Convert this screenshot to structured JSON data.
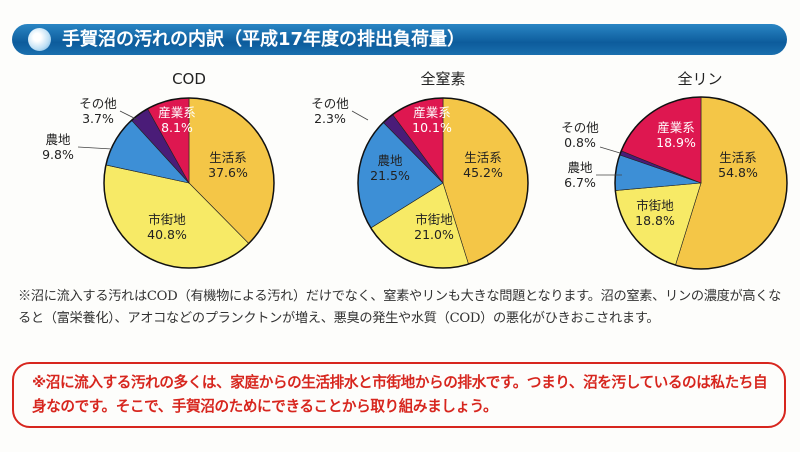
{
  "header": {
    "title": "手賀沼の汚れの内訳（平成17年度の排出負荷量）"
  },
  "colors": {
    "生活系": "#f4c647",
    "市街地": "#f7ea66",
    "農地": "#3d8fd6",
    "その他": "#4a1c78",
    "産業系": "#de1750",
    "banner": "#0d5c9c",
    "callout": "#d7261e"
  },
  "chart_data": [
    {
      "type": "pie",
      "title": "COD",
      "categories": [
        "生活系",
        "市街地",
        "農地",
        "その他",
        "産業系"
      ],
      "values": [
        37.6,
        40.8,
        9.8,
        3.7,
        8.1
      ],
      "labels": [
        "37.6%",
        "40.8%",
        "9.8%",
        "3.7%",
        "8.1%"
      ]
    },
    {
      "type": "pie",
      "title": "全窒素",
      "categories": [
        "生活系",
        "市街地",
        "農地",
        "その他",
        "産業系"
      ],
      "values": [
        45.2,
        21.0,
        21.5,
        2.3,
        10.1
      ],
      "labels": [
        "45.2%",
        "21.0%",
        "21.5%",
        "2.3%",
        "10.1%"
      ]
    },
    {
      "type": "pie",
      "title": "全リン",
      "categories": [
        "生活系",
        "市街地",
        "農地",
        "その他",
        "産業系"
      ],
      "values": [
        54.8,
        18.8,
        6.7,
        0.8,
        18.9
      ],
      "labels": [
        "54.8%",
        "18.8%",
        "6.7%",
        "0.8%",
        "18.9%"
      ]
    }
  ],
  "note": "※沼に流入する汚れはCOD（有機物による汚れ）だけでなく、窒素やリンも大きな問題となります。沼の窒素、リンの濃度が高くなると（富栄養化）、アオコなどのプランクトンが増え、悪臭の発生や水質（COD）の悪化がひきおこされます。",
  "callout": "※沼に流入する汚れの多くは、家庭からの生活排水と市街地からの排水です。つまり、沼を汚しているのは私たち自身なのです。そこで、手賀沼のためにできることから取り組みましょう。"
}
